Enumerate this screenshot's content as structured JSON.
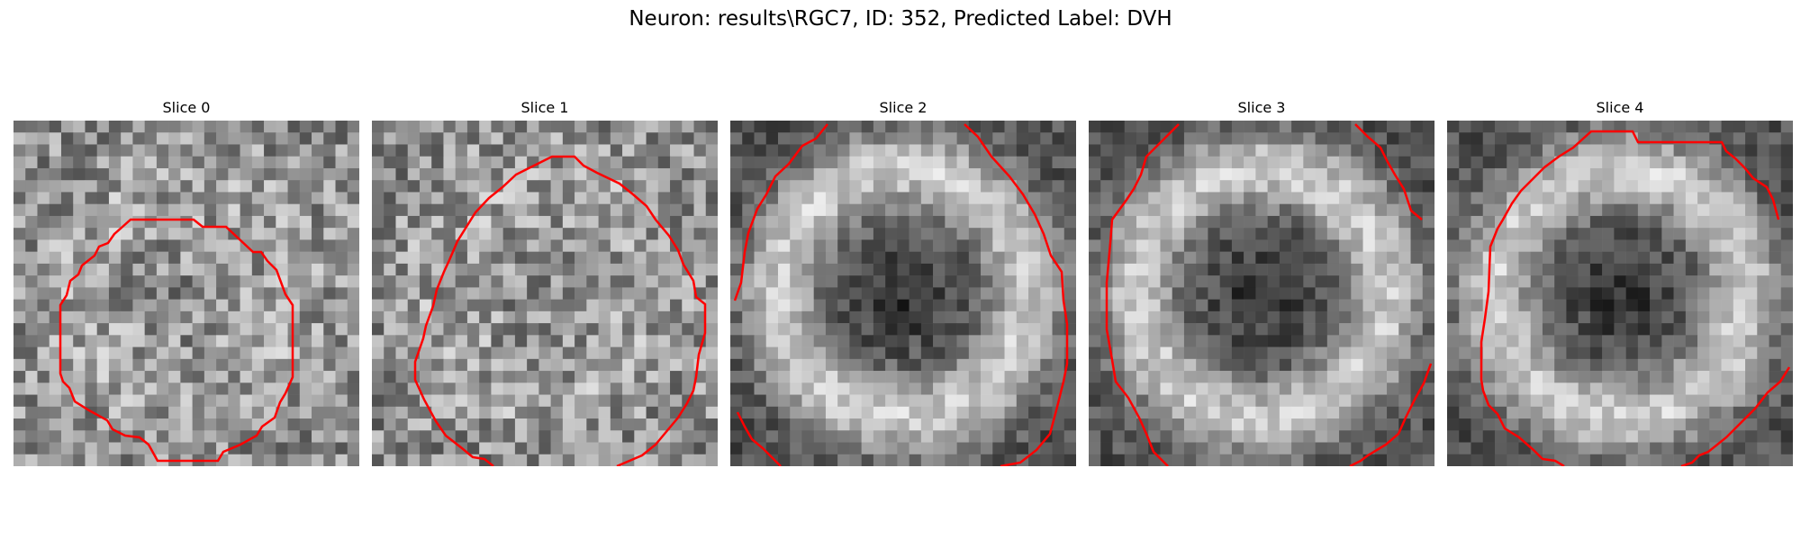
{
  "figure": {
    "title": "Neuron: results\\RGC7, ID: 352, Predicted Label: DVH"
  },
  "colors": {
    "contour": "#ff0000",
    "background": "#ffffff"
  },
  "slices": [
    {
      "title": "Slice 0",
      "pattern": "faint-ring",
      "seed": 11
    },
    {
      "title": "Slice 1",
      "pattern": "faint-ring",
      "seed": 23
    },
    {
      "title": "Slice 2",
      "pattern": "bright-ring",
      "seed": 37
    },
    {
      "title": "Slice 3",
      "pattern": "bright-ring",
      "seed": 53
    },
    {
      "title": "Slice 4",
      "pattern": "bright-ring",
      "seed": 71
    }
  ]
}
